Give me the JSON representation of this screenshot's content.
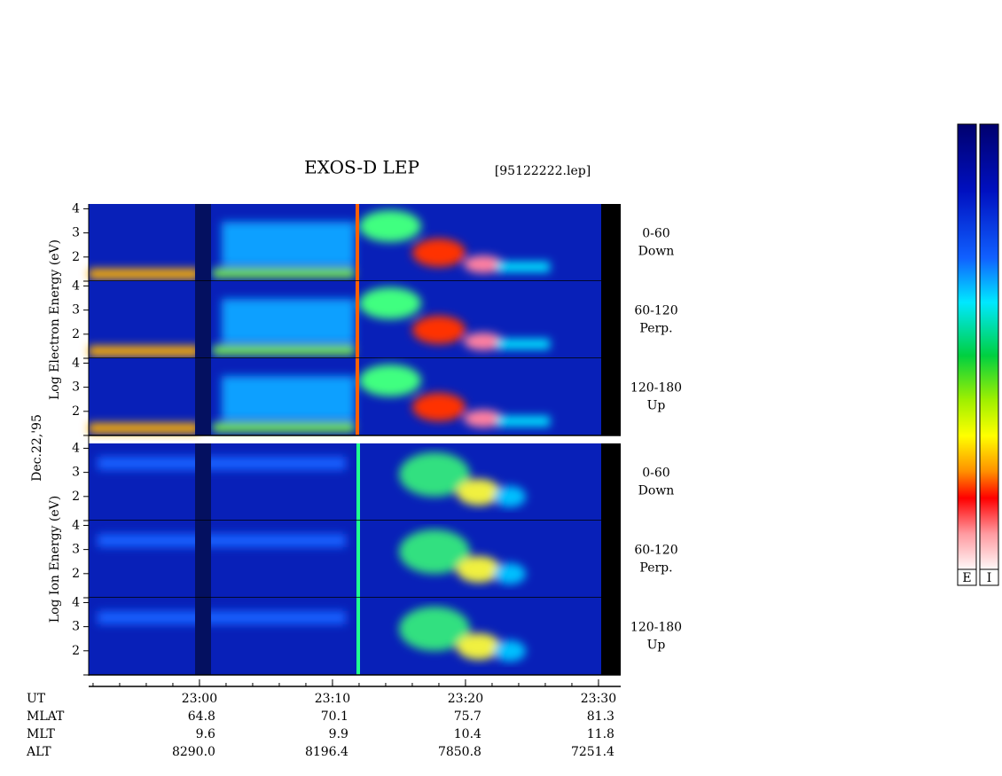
{
  "title": "EXOS-D LEP",
  "file": "[95122222.lep]",
  "date": "Dec.22,'95",
  "ylim": [
    1,
    4.2
  ],
  "yticks": [
    2,
    3,
    4
  ],
  "groups": [
    {
      "ylabel": "Log Electron Energy (eV)",
      "panels": [
        {
          "label": [
            "0-60",
            "Down"
          ]
        },
        {
          "label": [
            "60-120",
            "Perp."
          ]
        },
        {
          "label": [
            "120-180",
            "Up"
          ]
        }
      ]
    },
    {
      "ylabel": "Log Ion Energy (eV)",
      "panels": [
        {
          "label": [
            "0-60",
            "Down"
          ]
        },
        {
          "label": [
            "60-120",
            "Perp."
          ]
        },
        {
          "label": [
            "120-180",
            "Up"
          ]
        }
      ]
    }
  ],
  "xlim": [
    -8.33,
    31.67
  ],
  "xminor_step": 2,
  "xticks": [
    {
      "value": 0,
      "label": "23:00"
    },
    {
      "value": 10,
      "label": "23:10"
    },
    {
      "value": 20,
      "label": "23:20"
    },
    {
      "value": 30,
      "label": "23:30"
    }
  ],
  "ut_label": "UT",
  "rows": [
    {
      "name": "MLAT",
      "values": [
        "64.8",
        "70.1",
        "75.7",
        "81.3"
      ]
    },
    {
      "name": "MLT",
      "values": [
        "9.6",
        "9.9",
        "10.4",
        "11.8"
      ]
    },
    {
      "name": "ALT",
      "values": [
        "8290.0",
        "8196.4",
        "7850.8",
        "7251.4"
      ]
    }
  ],
  "colorbars": [
    "E",
    "I"
  ]
}
